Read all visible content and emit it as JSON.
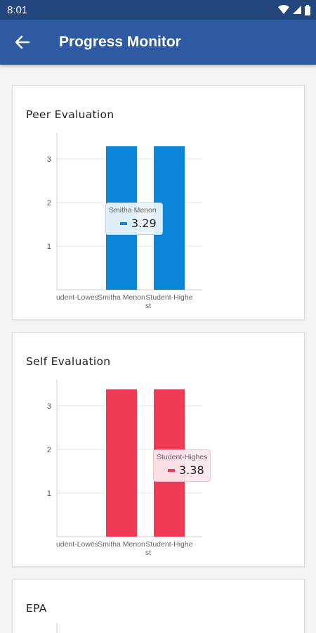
{
  "status_bar": {
    "time": "8:01"
  },
  "app_bar": {
    "title": "Progress Monitor"
  },
  "colors": {
    "app_bar": "#2e5aa1",
    "status_bar": "#23467d",
    "peer_bar": "#0a85d8",
    "self_bar": "#ef3b56"
  },
  "cards": [
    {
      "title": "Peer Evaluation",
      "tooltip": {
        "name": "Smitha Menon",
        "value": "3.29"
      },
      "chart_data": {
        "type": "bar",
        "categories": [
          "Student-Lowest",
          "Smitha Menon",
          "Student-Highest"
        ],
        "category_labels_visible": [
          "udent-Lowes",
          "Smitha Menon",
          "Student-Highe",
          "st"
        ],
        "values": [
          0,
          3.29,
          3.29
        ],
        "yticks": [
          "1",
          "2",
          "3"
        ],
        "ylim": [
          0,
          3.6
        ],
        "grid": true,
        "color": "#0a85d8"
      }
    },
    {
      "title": "Self Evaluation",
      "tooltip": {
        "name": "Student-Highes",
        "value": "3.38"
      },
      "chart_data": {
        "type": "bar",
        "categories": [
          "Student-Lowest",
          "Smitha Menon",
          "Student-Highest"
        ],
        "category_labels_visible": [
          "udent-Lowes",
          "Smitha Menon",
          "Student-Highe",
          "st"
        ],
        "values": [
          0,
          3.38,
          3.38
        ],
        "yticks": [
          "1",
          "2",
          "3"
        ],
        "ylim": [
          0,
          3.6
        ],
        "grid": true,
        "color": "#ef3b56"
      }
    },
    {
      "title": "EPA"
    }
  ]
}
